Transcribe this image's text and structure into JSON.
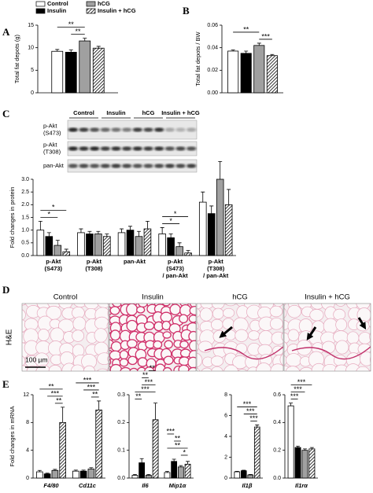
{
  "panel_labels": [
    "A",
    "B",
    "C",
    "D",
    "E"
  ],
  "chart_data": [
    {
      "type": "bar",
      "y_label": "Total fat depots (g)",
      "categories": [
        ""
      ],
      "series": [
        {
          "name": "Control",
          "color": "#ffffff",
          "values": [
            9.2
          ],
          "errors": [
            0.4
          ]
        },
        {
          "name": "Insulin",
          "color": "#000000",
          "values": [
            9.0
          ],
          "errors": [
            0.5
          ]
        },
        {
          "name": "hCG",
          "color": "#a0a0a0",
          "values": [
            11.5
          ],
          "errors": [
            0.6
          ]
        },
        {
          "name": "Insulin + hCG",
          "color": "#000000",
          "pattern": "hatch",
          "values": [
            9.9
          ],
          "errors": [
            0.4
          ]
        }
      ],
      "ylim": [
        0,
        15
      ],
      "yticks": [
        0,
        5,
        10,
        15
      ],
      "annotations": [
        {
          "text": "**",
          "category": 0,
          "from": 1,
          "to": 2
        },
        {
          "text": "**",
          "category": 0,
          "from": 0,
          "to": 2
        }
      ]
    },
    {
      "type": "bar",
      "y_label": "Total fat depots / BW",
      "categories": [
        ""
      ],
      "series": [
        {
          "color": "#ffffff",
          "values": [
            0.037
          ],
          "errors": [
            0.001
          ]
        },
        {
          "color": "#000000",
          "values": [
            0.035
          ],
          "errors": [
            0.002
          ]
        },
        {
          "color": "#a0a0a0",
          "values": [
            0.042
          ],
          "errors": [
            0.002
          ]
        },
        {
          "color": "#000000",
          "pattern": "hatch",
          "values": [
            0.033
          ],
          "errors": [
            0.001
          ]
        }
      ],
      "ylim": [
        0,
        0.06
      ],
      "yticks": [
        {
          "value": 0,
          "label": "0.00"
        },
        {
          "value": 0.02,
          "label": "0.02"
        },
        {
          "value": 0.04,
          "label": "0.04"
        },
        {
          "value": 0.06,
          "label": "0.06"
        }
      ],
      "annotations": [
        {
          "text": "***",
          "category": 0,
          "from": 2,
          "to": 3
        },
        {
          "text": "**",
          "category": 0,
          "from": 0,
          "to": 2
        }
      ]
    },
    {
      "type": "bar",
      "y_label": "Fold changes in protein",
      "categories": [
        [
          "p-Akt",
          "(S473)"
        ],
        [
          "p-Akt",
          "(T308)"
        ],
        [
          "pan-Akt"
        ],
        [
          "p-Akt",
          "(S473)",
          "/ pan-Akt"
        ],
        [
          "p-Akt",
          "(T308)",
          "/ pan-Akt"
        ]
      ],
      "series": [
        {
          "color": "#ffffff",
          "values": [
            1.0,
            0.9,
            0.9,
            0.85,
            2.1
          ],
          "errors": [
            0.35,
            0.15,
            0.15,
            0.25,
            0.4
          ]
        },
        {
          "color": "#000000",
          "values": [
            0.75,
            0.85,
            1.0,
            0.7,
            1.65
          ],
          "errors": [
            0.15,
            0.1,
            0.15,
            0.15,
            0.3
          ]
        },
        {
          "color": "#a0a0a0",
          "values": [
            0.4,
            0.85,
            0.75,
            0.35,
            3.0
          ],
          "errors": [
            0.2,
            0.1,
            0.2,
            0.15,
            0.7
          ]
        },
        {
          "color": "#000000",
          "pattern": "hatch",
          "values": [
            0.15,
            0.75,
            1.05,
            0.1,
            2.0
          ],
          "errors": [
            0.1,
            0.1,
            0.3,
            0.1,
            0.6
          ]
        }
      ],
      "ylim": [
        0,
        3.0
      ],
      "yticks": [
        {
          "value": 0,
          "label": "0.0"
        },
        {
          "value": 0.5,
          "label": "0.5"
        },
        {
          "value": 1,
          "label": "1.0"
        },
        {
          "value": 1.5,
          "label": "1.5"
        },
        {
          "value": 2,
          "label": "2.0"
        },
        {
          "value": 2.5,
          "label": "2.5"
        },
        {
          "value": 3,
          "label": "3.0"
        }
      ],
      "annotations": [
        {
          "text": "*",
          "category": 0,
          "from": 0,
          "to": 2
        },
        {
          "text": "*",
          "category": 0,
          "from": 0,
          "to": 3
        },
        {
          "text": "*",
          "category": 3,
          "from": 0,
          "to": 2
        },
        {
          "text": "*",
          "category": 3,
          "from": 0,
          "to": 3
        }
      ]
    },
    {
      "type": "bar",
      "y_label": "Fold changes in mRNA",
      "categories": [
        "F4/80",
        "Cd11c"
      ],
      "series": [
        {
          "color": "#ffffff",
          "values": [
            0.9,
            1.0
          ],
          "errors": [
            0.2,
            0.15
          ]
        },
        {
          "color": "#000000",
          "values": [
            0.6,
            1.0
          ],
          "errors": [
            0.1,
            0.15
          ]
        },
        {
          "color": "#a0a0a0",
          "values": [
            1.1,
            1.3
          ],
          "errors": [
            0.15,
            0.2
          ]
        },
        {
          "color": "#000000",
          "pattern": "hatch",
          "values": [
            8.0,
            9.8
          ],
          "errors": [
            2.2,
            1.3
          ]
        }
      ],
      "ylim": [
        0,
        12
      ],
      "yticks": [
        0,
        4,
        8,
        12
      ],
      "annotations": [
        {
          "text": "**",
          "category": 0,
          "from": 2,
          "to": 3
        },
        {
          "text": "***",
          "category": 0,
          "from": 1,
          "to": 3
        },
        {
          "text": "**",
          "category": 0,
          "from": 0,
          "to": 3
        },
        {
          "text": "**",
          "category": 1,
          "from": 2,
          "to": 3
        },
        {
          "text": "***",
          "category": 1,
          "from": 1,
          "to": 3
        },
        {
          "text": "***",
          "category": 1,
          "from": 0,
          "to": 3
        }
      ]
    },
    {
      "type": "bar",
      "categories": [
        "Il6",
        "Mip1α"
      ],
      "series": [
        {
          "color": "#ffffff",
          "values": [
            0.01,
            0.02
          ],
          "errors": [
            0.003,
            0.004
          ]
        },
        {
          "color": "#000000",
          "values": [
            0.055,
            0.06
          ],
          "errors": [
            0.015,
            0.008
          ]
        },
        {
          "color": "#a0a0a0",
          "values": [
            0.01,
            0.04
          ],
          "errors": [
            0.003,
            0.005
          ]
        },
        {
          "color": "#000000",
          "pattern": "hatch",
          "values": [
            0.21,
            0.05
          ],
          "errors": [
            0.06,
            0.01
          ]
        }
      ],
      "ylim": [
        0,
        0.3
      ],
      "yticks": [
        {
          "value": 0,
          "label": "0.0"
        },
        {
          "value": 0.1,
          "label": "0.1"
        },
        {
          "value": 0.2,
          "label": "0.2"
        },
        {
          "value": 0.3,
          "label": "0.3"
        }
      ],
      "annotations": [
        {
          "text": "**",
          "category": 0,
          "from": 0,
          "to": 1
        },
        {
          "text": "***",
          "category": 0,
          "from": 0,
          "to": 3
        },
        {
          "text": "***",
          "category": 0,
          "from": 1,
          "to": 3
        },
        {
          "text": "**",
          "category": 0,
          "from": 1,
          "to": 2
        },
        {
          "text": "**",
          "category": 0,
          "from": 2,
          "to": 3
        },
        {
          "text": "*",
          "category": 1,
          "from": 2,
          "to": 3
        },
        {
          "text": "**",
          "category": 1,
          "from": 0,
          "to": 3
        },
        {
          "text": "**",
          "category": 1,
          "from": 1,
          "to": 2
        },
        {
          "text": "***",
          "category": 1,
          "from": 0,
          "to": 1
        }
      ]
    },
    {
      "type": "bar",
      "categories": [
        "Il1β"
      ],
      "series": [
        {
          "color": "#ffffff",
          "values": [
            0.6
          ],
          "errors": [
            0.05
          ]
        },
        {
          "color": "#000000",
          "values": [
            0.7
          ],
          "errors": [
            0.05
          ]
        },
        {
          "color": "#a0a0a0",
          "values": [
            0.3
          ],
          "errors": [
            0.05
          ]
        },
        {
          "color": "#000000",
          "pattern": "hatch",
          "values": [
            4.9
          ],
          "errors": [
            0.2
          ]
        }
      ],
      "ylim": [
        0,
        8
      ],
      "yticks": [
        0,
        2,
        4,
        6,
        8
      ],
      "annotations": [
        {
          "text": "***",
          "category": 0,
          "from": 2,
          "to": 3
        },
        {
          "text": "***",
          "category": 0,
          "from": 1,
          "to": 3
        },
        {
          "text": "***",
          "category": 0,
          "from": 0,
          "to": 3
        }
      ]
    },
    {
      "type": "bar",
      "categories": [
        "Il1rα"
      ],
      "series": [
        {
          "color": "#ffffff",
          "values": [
            0.52
          ],
          "errors": [
            0.02
          ]
        },
        {
          "color": "#000000",
          "values": [
            0.22
          ],
          "errors": [
            0.01
          ]
        },
        {
          "color": "#a0a0a0",
          "values": [
            0.2
          ],
          "errors": [
            0.01
          ]
        },
        {
          "color": "#000000",
          "pattern": "hatch",
          "values": [
            0.21
          ],
          "errors": [
            0.01
          ]
        }
      ],
      "ylim": [
        0,
        0.6
      ],
      "yticks": [
        {
          "value": 0,
          "label": "0.0"
        },
        {
          "value": 0.2,
          "label": "0.2"
        },
        {
          "value": 0.4,
          "label": "0.4"
        },
        {
          "value": 0.6,
          "label": "0.6"
        }
      ],
      "annotations": [
        {
          "text": "***",
          "category": 0,
          "from": 0,
          "to": 1
        },
        {
          "text": "***",
          "category": 0,
          "from": 0,
          "to": 2
        },
        {
          "text": "***",
          "category": 0,
          "from": 0,
          "to": 3
        }
      ]
    }
  ],
  "blot": {
    "groups": [
      "Control",
      "Insulin",
      "hCG",
      "Insulin + hCG"
    ],
    "rows": [
      [
        "p-Akt",
        "(S473)"
      ],
      [
        "p-Akt",
        "(T308)"
      ],
      [
        "pan-Akt"
      ]
    ]
  },
  "histology": {
    "groups": [
      "Control",
      "Insulin",
      "hCG",
      "Insulin + hCG"
    ],
    "stain": "H&E",
    "scale_bar": "100 µm"
  }
}
